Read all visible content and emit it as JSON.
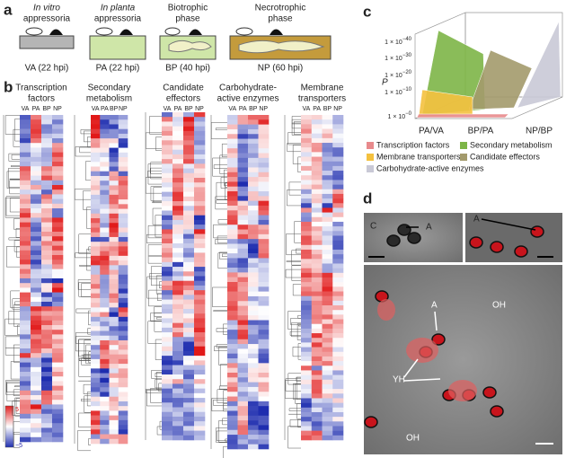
{
  "panel_labels": [
    "a",
    "b",
    "c",
    "d"
  ],
  "panel_a": {
    "stages": [
      {
        "lines": [
          "In vitro",
          "appressoria"
        ],
        "label": "VA (22 hpi)"
      },
      {
        "lines": [
          "In planta",
          "appressoria"
        ],
        "label": "PA (22 hpi)"
      },
      {
        "lines": [
          "Biotrophic",
          "phase"
        ],
        "label": "BP (40 hpi)"
      },
      {
        "lines": [
          "Necrotrophic",
          "phase"
        ],
        "label": "NP (60 hpi)"
      }
    ]
  },
  "panel_b": {
    "heatmaps": [
      {
        "title": [
          "Transcription",
          "factors"
        ]
      },
      {
        "title": [
          "Secondary",
          "metabolism"
        ]
      },
      {
        "title": [
          "Candidate",
          "effectors"
        ]
      },
      {
        "title": [
          "Carbohydrate-",
          "active enzymes"
        ]
      },
      {
        "title": [
          "Membrane",
          "transporters"
        ]
      }
    ],
    "columns": [
      "VA",
      "PA",
      "BP",
      "NP"
    ],
    "scale": [
      "5",
      "−5"
    ]
  },
  "panel_c": {
    "y_label": "P",
    "yticks": [
      {
        "base": "1 × 10",
        "exp": "−40"
      },
      {
        "base": "1 × 10",
        "exp": "−30"
      },
      {
        "base": "1 × 10",
        "exp": "−20"
      },
      {
        "base": "1 × 10",
        "exp": "−10"
      },
      {
        "base": "1 × 10",
        "exp": "−0"
      }
    ],
    "x_labels": [
      "PA/VA",
      "BP/PA",
      "NP/BP"
    ],
    "legend": [
      {
        "name": "Transcription factors",
        "color": "#e88a8c"
      },
      {
        "name": "Secondary metabolism",
        "color": "#7db547"
      },
      {
        "name": "Membrane transporters",
        "color": "#f4c13f"
      },
      {
        "name": "Candidate effectors",
        "color": "#a39a6c"
      },
      {
        "name": "Carbohydrate-active enzymes",
        "color": "#c9c9d6"
      }
    ]
  },
  "panel_d": {
    "labels": [
      "C",
      "A",
      "A",
      "A",
      "OH",
      "YH",
      "OH"
    ]
  }
}
